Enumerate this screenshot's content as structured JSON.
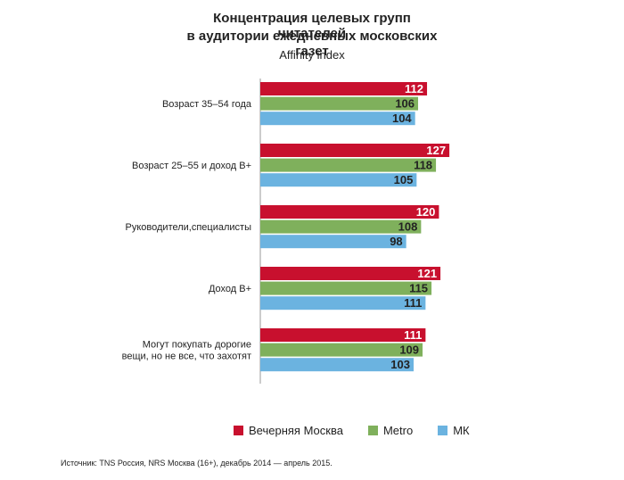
{
  "chart_data": {
    "type": "bar",
    "orientation": "horizontal",
    "title_line1": "Концентрация целевых групп читателей",
    "title_line2": "в аудитории ежедневных московских газет",
    "subtitle": "Affinity index",
    "categories": [
      [
        "Возраст 35–54 года"
      ],
      [
        "Возраст 25–55 и доход В+"
      ],
      [
        "Руководители,специалисты"
      ],
      [
        "Доход В+"
      ],
      [
        "Могут покупать дорогие",
        "вещи, но не все, что захотят"
      ]
    ],
    "series": [
      {
        "name": "Вечерняя Москва",
        "color": "#c8102e",
        "values": [
          112,
          127,
          120,
          121,
          111
        ]
      },
      {
        "name": "Metro",
        "color": "#7fb05c",
        "values": [
          106,
          118,
          108,
          115,
          109
        ]
      },
      {
        "name": "МК",
        "color": "#6bb3e0",
        "values": [
          104,
          105,
          98,
          111,
          103
        ]
      }
    ],
    "grid": false,
    "legend_position": "bottom"
  },
  "source": "Источник: TNS Россия,  NRS Москва (16+), декабрь  2014 — апрель 2015."
}
